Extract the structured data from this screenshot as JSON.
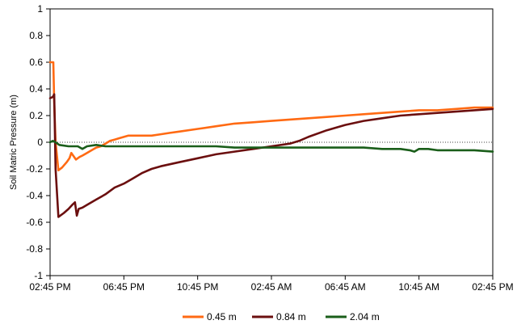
{
  "chart_data": {
    "type": "line",
    "title": "",
    "xlabel": "",
    "ylabel": "Soil Matric Pressure (m)",
    "ylim": [
      -1,
      1
    ],
    "yticks": [
      1,
      0.8,
      0.6,
      0.4,
      0.2,
      0,
      -0.2,
      -0.4,
      -0.6,
      -0.8,
      -1
    ],
    "ytick_labels": [
      "1",
      "0.8",
      "0.6",
      "0.4",
      "0.2",
      "0",
      "-0.2",
      "-0.4",
      "-0.6",
      "-0.8",
      "-1"
    ],
    "xlim": [
      0,
      48
    ],
    "x_unit": "hours since 02:45 PM",
    "xticks": [
      0,
      8,
      16,
      24,
      32,
      40,
      48
    ],
    "xtick_labels": [
      "02:45 PM",
      "06:45 PM",
      "10:45 PM",
      "02:45 AM",
      "06:45 AM",
      "10:45 AM",
      "02:45 PM"
    ],
    "zero_reference_line": true,
    "legend_position": "bottom",
    "series": [
      {
        "name": "0.45 m",
        "color": "#ff6a13",
        "x": [
          0,
          0.35,
          0.45,
          0.6,
          0.9,
          1.3,
          1.8,
          2.1,
          2.3,
          2.8,
          3.2,
          3.5,
          4.0,
          4.5,
          5.0,
          5.5,
          6.0,
          6.5,
          7.0,
          7.5,
          8.0,
          8.5,
          9.0,
          9.5,
          10.0,
          11.0,
          12.0,
          13.0,
          14.0,
          16.0,
          18.0,
          20.0,
          22.0,
          24.0,
          26.0,
          28.0,
          30.0,
          32.0,
          34.0,
          36.0,
          38.0,
          40.0,
          42.0,
          44.0,
          46.0,
          48.0
        ],
        "y": [
          0.6,
          0.6,
          0.3,
          0.0,
          -0.21,
          -0.19,
          -0.15,
          -0.12,
          -0.08,
          -0.13,
          -0.11,
          -0.1,
          -0.08,
          -0.06,
          -0.04,
          -0.03,
          -0.01,
          0.01,
          0.02,
          0.03,
          0.04,
          0.05,
          0.05,
          0.05,
          0.05,
          0.05,
          0.06,
          0.07,
          0.08,
          0.1,
          0.12,
          0.14,
          0.15,
          0.16,
          0.17,
          0.18,
          0.19,
          0.2,
          0.21,
          0.22,
          0.23,
          0.24,
          0.24,
          0.25,
          0.26,
          0.26
        ]
      },
      {
        "name": "0.84 m",
        "color": "#6b0f0f",
        "x": [
          0,
          0.3,
          0.45,
          0.6,
          0.9,
          1.5,
          2.0,
          2.4,
          2.7,
          2.9,
          3.1,
          3.5,
          4.0,
          5.0,
          6.0,
          7.0,
          8.0,
          9.0,
          10.0,
          11.0,
          12.0,
          14.0,
          16.0,
          18.0,
          20.0,
          22.0,
          24.0,
          26.0,
          27.0,
          28.0,
          30.0,
          32.0,
          34.0,
          36.0,
          38.0,
          40.0,
          42.0,
          44.0,
          46.0,
          48.0
        ],
        "y": [
          0.33,
          0.34,
          0.36,
          -0.2,
          -0.56,
          -0.53,
          -0.5,
          -0.47,
          -0.45,
          -0.55,
          -0.5,
          -0.49,
          -0.47,
          -0.43,
          -0.39,
          -0.34,
          -0.31,
          -0.27,
          -0.23,
          -0.2,
          -0.18,
          -0.15,
          -0.12,
          -0.09,
          -0.07,
          -0.05,
          -0.03,
          -0.01,
          0.01,
          0.04,
          0.09,
          0.13,
          0.16,
          0.18,
          0.2,
          0.21,
          0.22,
          0.23,
          0.24,
          0.25
        ]
      },
      {
        "name": "2.04 m",
        "color": "#1a5e1a",
        "x": [
          0,
          0.3,
          0.6,
          1.0,
          2.0,
          3.0,
          3.5,
          4.0,
          5.0,
          6.0,
          8.0,
          10.0,
          12.0,
          14.0,
          16.0,
          18.0,
          20.0,
          22.0,
          24.0,
          26.0,
          28.0,
          30.0,
          32.0,
          34.0,
          36.0,
          38.0,
          39.0,
          39.5,
          40.0,
          41.0,
          42.0,
          44.0,
          46.0,
          48.0
        ],
        "y": [
          0.0,
          0.01,
          0.0,
          -0.02,
          -0.03,
          -0.03,
          -0.05,
          -0.03,
          -0.02,
          -0.03,
          -0.03,
          -0.03,
          -0.03,
          -0.03,
          -0.03,
          -0.03,
          -0.04,
          -0.04,
          -0.04,
          -0.04,
          -0.04,
          -0.04,
          -0.04,
          -0.04,
          -0.05,
          -0.05,
          -0.06,
          -0.07,
          -0.05,
          -0.05,
          -0.06,
          -0.06,
          -0.06,
          -0.07
        ]
      }
    ]
  }
}
